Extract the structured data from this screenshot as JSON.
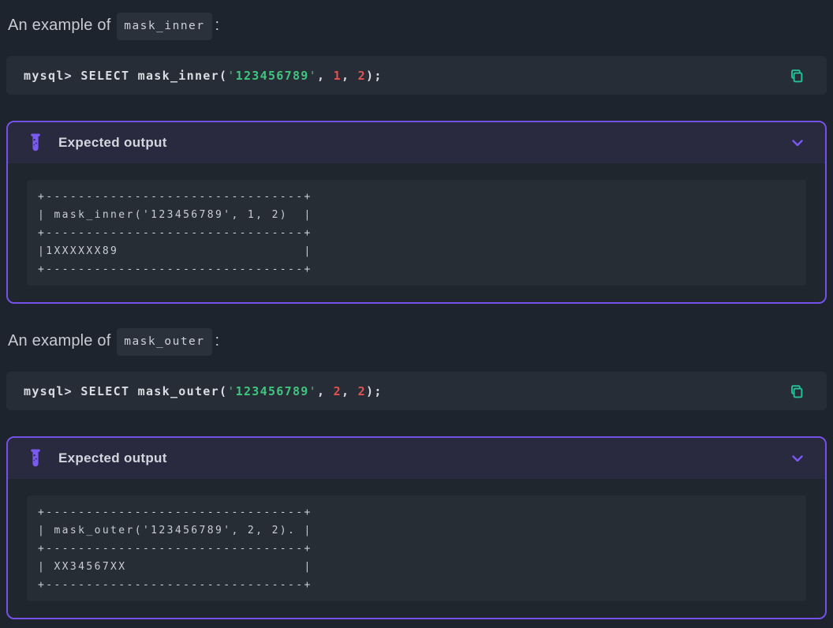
{
  "colors": {
    "page_bg": "#1e242d",
    "code_block_bg": "#262d37",
    "panel_border": "#7452e8",
    "panel_header_bg": "#29293f",
    "pre_bg": "#262d35",
    "accent_purple": "#7b5af0",
    "accent_teal": "#25c19a",
    "string_green": "#41c47d",
    "number_red": "#e0534e"
  },
  "examples": [
    {
      "heading": {
        "prefix": "An example of",
        "code": "mask_inner",
        "suffix": ":"
      },
      "command_tokens": [
        {
          "t": "plain",
          "v": "mysql> SELECT mask_inner("
        },
        {
          "t": "quote",
          "v": "'"
        },
        {
          "t": "string",
          "v": "123456789"
        },
        {
          "t": "quote",
          "v": "'"
        },
        {
          "t": "plain",
          "v": ", "
        },
        {
          "t": "number",
          "v": "1"
        },
        {
          "t": "plain",
          "v": ", "
        },
        {
          "t": "number",
          "v": "2"
        },
        {
          "t": "plain",
          "v": ");"
        }
      ],
      "panel": {
        "title": "Expected output",
        "output_lines": [
          "+--------------------------------+",
          "| mask_inner('123456789', 1, 2)  |",
          "+--------------------------------+",
          "|1XXXXXX89                       |",
          "+--------------------------------+"
        ]
      }
    },
    {
      "heading": {
        "prefix": "An example of",
        "code": "mask_outer",
        "suffix": ":"
      },
      "command_tokens": [
        {
          "t": "plain",
          "v": "mysql> SELECT mask_outer("
        },
        {
          "t": "quote",
          "v": "'"
        },
        {
          "t": "string",
          "v": "123456789"
        },
        {
          "t": "quote",
          "v": "'"
        },
        {
          "t": "plain",
          "v": ", "
        },
        {
          "t": "number",
          "v": "2"
        },
        {
          "t": "plain",
          "v": ", "
        },
        {
          "t": "number",
          "v": "2"
        },
        {
          "t": "plain",
          "v": ");"
        }
      ],
      "panel": {
        "title": "Expected output",
        "output_lines": [
          "+--------------------------------+",
          "| mask_outer('123456789', 2, 2). |",
          "+--------------------------------+",
          "| XX34567XX                      |",
          "+--------------------------------+"
        ]
      }
    }
  ]
}
